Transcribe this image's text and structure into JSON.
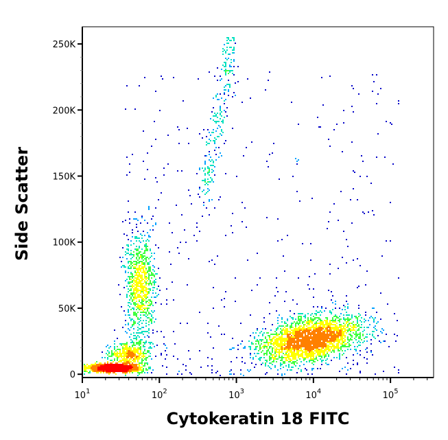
{
  "chart_data": {
    "type": "scatter",
    "subtype": "density-dot-plot",
    "xlabel": "Cytokeratin 18 FITC",
    "ylabel": "Side Scatter",
    "x_scale": "log",
    "xlim": [
      10,
      363000
    ],
    "ylim": [
      -2500,
      263000
    ],
    "x_ticks": [
      {
        "v": 10,
        "base": "10",
        "exp": "1"
      },
      {
        "v": 100,
        "base": "10",
        "exp": "2"
      },
      {
        "v": 1000,
        "base": "10",
        "exp": "3"
      },
      {
        "v": 10000,
        "base": "10",
        "exp": "4"
      },
      {
        "v": 100000,
        "base": "10",
        "exp": "5"
      }
    ],
    "y_ticks": [
      {
        "v": 0,
        "label": "0"
      },
      {
        "v": 50000,
        "label": "50K"
      },
      {
        "v": 100000,
        "label": "100K"
      },
      {
        "v": 150000,
        "label": "150K"
      },
      {
        "v": 200000,
        "label": "200K"
      },
      {
        "v": 250000,
        "label": "250K"
      }
    ],
    "grid": false,
    "color_scale": [
      "#0000c8",
      "#00a0ff",
      "#00e0c0",
      "#40ff40",
      "#ffff00",
      "#ff8000",
      "#ff0000"
    ],
    "populations": [
      {
        "log10_x_center": 1.4,
        "log10_x_sd": 0.18,
        "y_center": 5000,
        "y_sd": 1500,
        "count": 1200
      },
      {
        "log10_x_center": 1.6,
        "log10_x_sd": 0.13,
        "y_center": 15000,
        "y_sd": 5000,
        "count": 500
      },
      {
        "log10_x_center": 1.75,
        "log10_x_sd": 0.1,
        "y_center": 68000,
        "y_sd": 20000,
        "count": 900
      },
      {
        "log10_x_range": [
          2.55,
          2.95
        ],
        "y_range": [
          130000,
          255000
        ],
        "count": 260
      },
      {
        "log10_x_center": 3.95,
        "log10_x_sd": 0.33,
        "y_center": 27000,
        "y_sd": 8000,
        "count": 3000
      },
      {
        "log10_x_range": [
          1.5,
          5.1
        ],
        "y_range": [
          0,
          230000
        ],
        "count": 450
      }
    ]
  }
}
